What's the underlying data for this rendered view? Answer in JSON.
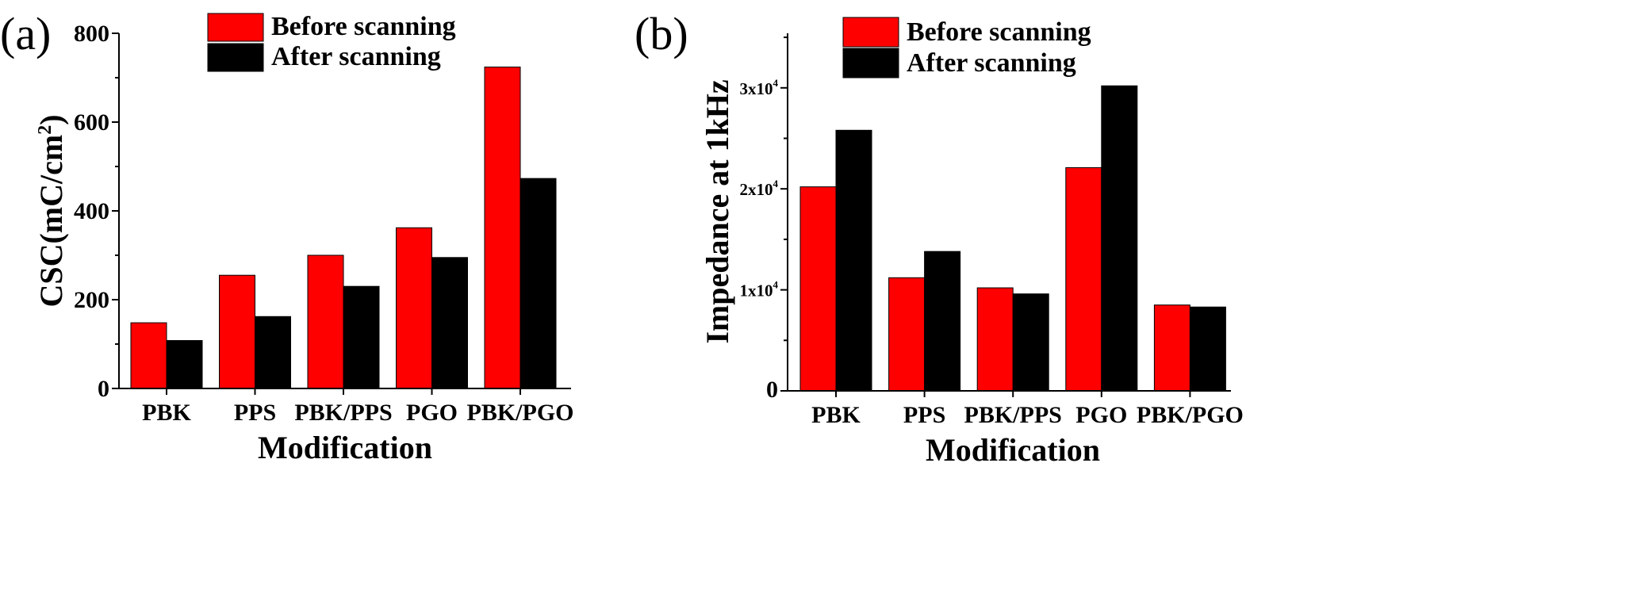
{
  "chart_data": [
    {
      "id": "a",
      "type": "bar",
      "panel_label": "(a)",
      "categories": [
        "PBK",
        "PPS",
        "PBK/PPS",
        "PGO",
        "PBK/PGO"
      ],
      "series": [
        {
          "name": "Before scanning",
          "color": "#ff0000",
          "values": [
            148,
            255,
            300,
            362,
            724
          ]
        },
        {
          "name": "After scanning",
          "color": "#000000",
          "values": [
            108,
            162,
            230,
            295,
            473
          ]
        }
      ],
      "xlabel": "Modification",
      "ylabel": "CSC(mC/cm",
      "ylabel_sup": "2",
      "ylabel_tail": ")",
      "ylim": [
        0,
        800
      ],
      "yticks": [
        {
          "value": 0,
          "label": "0"
        },
        {
          "value": 200,
          "label": "200"
        },
        {
          "value": 400,
          "label": "400"
        },
        {
          "value": 600,
          "label": "600"
        },
        {
          "value": 800,
          "label": "800"
        }
      ],
      "legend_position": "top-center"
    },
    {
      "id": "b",
      "type": "bar",
      "panel_label": "(b)",
      "categories": [
        "PBK",
        "PPS",
        "PBK/PPS",
        "PGO",
        "PBK/PGO"
      ],
      "series": [
        {
          "name": "Before scanning",
          "color": "#ff0000",
          "values": [
            20200,
            11200,
            10200,
            22100,
            8500
          ]
        },
        {
          "name": "After scanning",
          "color": "#000000",
          "values": [
            25800,
            13800,
            9600,
            30200,
            8300
          ]
        }
      ],
      "xlabel": "Modification",
      "ylabel": "Impedance at 1kHz",
      "ylim": [
        0,
        35400
      ],
      "yticks": [
        {
          "value": 0,
          "label": "0",
          "base": "",
          "exp": ""
        },
        {
          "value": 10000,
          "label": "1x10",
          "base": "1x10",
          "exp": "4"
        },
        {
          "value": 20000,
          "label": "2x10",
          "base": "2x10",
          "exp": "4"
        },
        {
          "value": 30000,
          "label": "3x10",
          "base": "3x10",
          "exp": "4"
        }
      ],
      "legend_position": "top-center"
    }
  ]
}
